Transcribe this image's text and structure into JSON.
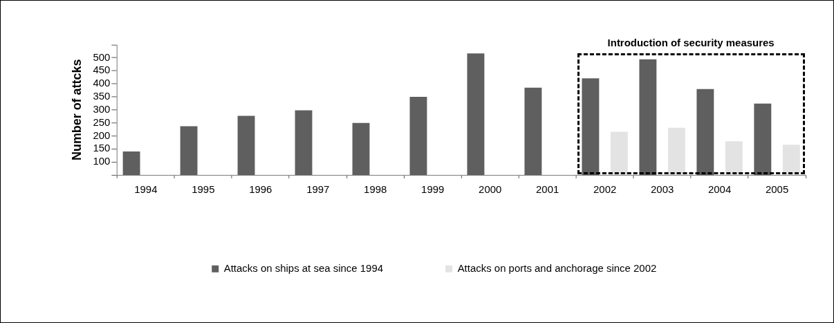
{
  "chart_data": {
    "type": "bar",
    "ylabel": "Number of attcks",
    "categories": [
      "1994",
      "1995",
      "1996",
      "1997",
      "1998",
      "1999",
      "2000",
      "2001",
      "2002",
      "2003",
      "2004",
      "2005"
    ],
    "series": [
      {
        "name": "Attacks on ships at sea since 1994",
        "color": "#5f5f5f",
        "values": [
          140,
          237,
          277,
          298,
          250,
          350,
          517,
          385,
          421,
          494,
          380,
          324
        ]
      },
      {
        "name": "Attacks on ports and anchorage since 2002",
        "color": "#e3e3e3",
        "values": [
          null,
          null,
          null,
          null,
          null,
          null,
          null,
          null,
          216,
          231,
          179,
          166
        ]
      }
    ],
    "ylim": [
      50,
      550
    ],
    "yticks": [
      {
        "value": 50,
        "label": null
      },
      100,
      150,
      200,
      250,
      300,
      350,
      400,
      450,
      500,
      {
        "value": 550,
        "label": null
      }
    ],
    "annotations": [
      "Introduction of security measures"
    ],
    "grid": false,
    "legend": "bottom"
  }
}
